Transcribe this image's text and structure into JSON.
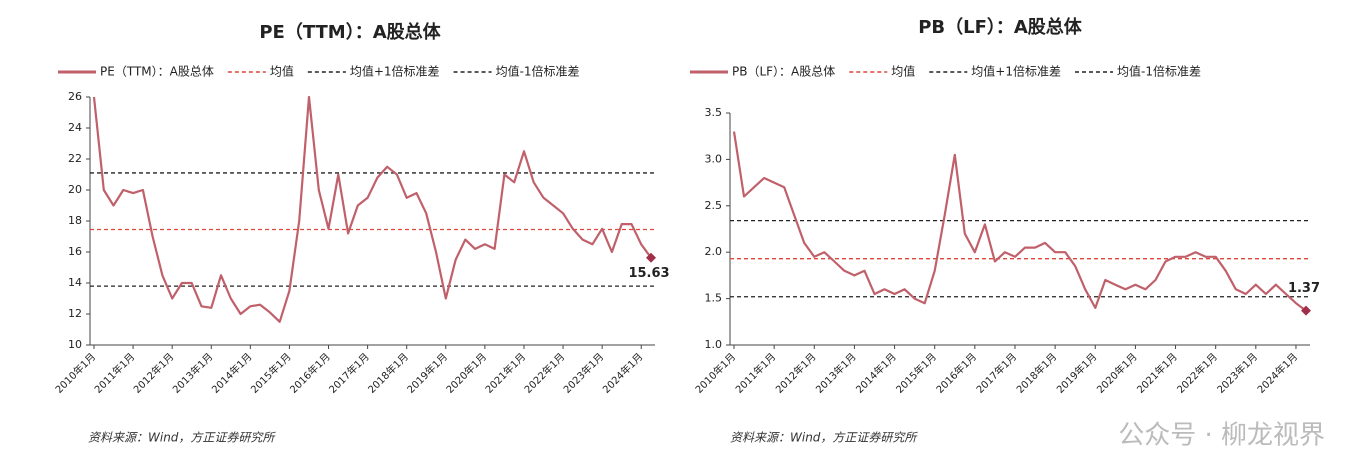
{
  "chart_data": [
    {
      "type": "line",
      "title": "PE（TTM）：A股总体",
      "categories": [
        "2010年1月",
        null,
        null,
        null,
        "2011年1月",
        null,
        null,
        null,
        "2012年1月",
        null,
        null,
        null,
        "2013年1月",
        null,
        null,
        null,
        "2014年1月",
        null,
        null,
        null,
        "2015年1月",
        null,
        null,
        null,
        "2016年1月",
        null,
        null,
        null,
        "2017年1月",
        null,
        null,
        null,
        "2018年1月",
        null,
        null,
        null,
        "2019年1月",
        null,
        null,
        null,
        "2020年1月",
        null,
        null,
        null,
        "2021年1月",
        null,
        null,
        null,
        "2022年1月",
        null,
        null,
        null,
        "2023年1月",
        null,
        null,
        null,
        "2024年1月",
        null
      ],
      "series": [
        {
          "name": "PE（TTM）：A股总体",
          "color": "#c0606a",
          "values": [
            26,
            20,
            19,
            20,
            19.8,
            20,
            17,
            14.5,
            13,
            14,
            14,
            12.5,
            12.4,
            14.5,
            13,
            12,
            12.5,
            12.6,
            12.1,
            11.5,
            13.5,
            18,
            26,
            20,
            17.5,
            21,
            17.2,
            19,
            19.5,
            20.8,
            21.5,
            21,
            19.5,
            19.8,
            18.5,
            16,
            13,
            15.5,
            16.8,
            16.2,
            16.5,
            16.2,
            21,
            20.5,
            22.5,
            20.5,
            19.5,
            19,
            18.5,
            17.5,
            16.8,
            16.5,
            17.5,
            16,
            17.8,
            17.8,
            16.5,
            15.63
          ]
        }
      ],
      "reference_lines": [
        {
          "name": "均值",
          "color": "#e0453a",
          "value": 17.45
        },
        {
          "name": "均值+1倍标准差",
          "color": "#222222",
          "value": 21.1
        },
        {
          "name": "均值-1倍标准差",
          "color": "#222222",
          "value": 13.8
        }
      ],
      "ylim": [
        10,
        26
      ],
      "yticks": [
        10,
        12,
        14,
        16,
        18,
        20,
        22,
        24,
        26
      ],
      "source": "资料来源：Wind，方正证券研究所"
    },
    {
      "type": "line",
      "title": "PB（LF）：A股总体",
      "categories": [
        "2010年1月",
        null,
        null,
        null,
        "2011年1月",
        null,
        null,
        null,
        "2012年1月",
        null,
        null,
        null,
        "2013年1月",
        null,
        null,
        null,
        "2014年1月",
        null,
        null,
        null,
        "2015年1月",
        null,
        null,
        null,
        "2016年1月",
        null,
        null,
        null,
        "2017年1月",
        null,
        null,
        null,
        "2018年1月",
        null,
        null,
        null,
        "2019年1月",
        null,
        null,
        null,
        "2020年1月",
        null,
        null,
        null,
        "2021年1月",
        null,
        null,
        null,
        "2022年1月",
        null,
        null,
        null,
        "2023年1月",
        null,
        null,
        null,
        "2024年1月",
        null
      ],
      "series": [
        {
          "name": "PB（LF）：A股总体",
          "color": "#c0606a",
          "values": [
            3.3,
            2.6,
            2.7,
            2.8,
            2.75,
            2.7,
            2.4,
            2.1,
            1.95,
            2.0,
            1.9,
            1.8,
            1.75,
            1.8,
            1.55,
            1.6,
            1.55,
            1.6,
            1.5,
            1.45,
            1.8,
            2.4,
            3.05,
            2.2,
            2.0,
            2.3,
            1.9,
            2.0,
            1.95,
            2.05,
            2.05,
            2.1,
            2.0,
            2.0,
            1.85,
            1.6,
            1.4,
            1.7,
            1.65,
            1.6,
            1.65,
            1.6,
            1.7,
            1.9,
            1.95,
            1.95,
            2.0,
            1.95,
            1.95,
            1.8,
            1.6,
            1.55,
            1.65,
            1.55,
            1.65,
            1.55,
            1.45,
            1.37
          ]
        }
      ],
      "reference_lines": [
        {
          "name": "均值",
          "color": "#e0453a",
          "value": 1.93
        },
        {
          "name": "均值+1倍标准差",
          "color": "#222222",
          "value": 2.34
        },
        {
          "name": "均值-1倍标准差",
          "color": "#222222",
          "value": 1.52
        }
      ],
      "ylim": [
        1.0,
        3.5
      ],
      "yticks": [
        {
          "value": 1,
          "label": "1.0"
        },
        1.5,
        {
          "value": 2,
          "label": "2.0"
        },
        2.5,
        {
          "value": 3,
          "label": "3.0"
        },
        3.5
      ],
      "source": "资料来源：Wind，方正证券研究所"
    }
  ],
  "watermark": "公众号 · 柳龙视界"
}
